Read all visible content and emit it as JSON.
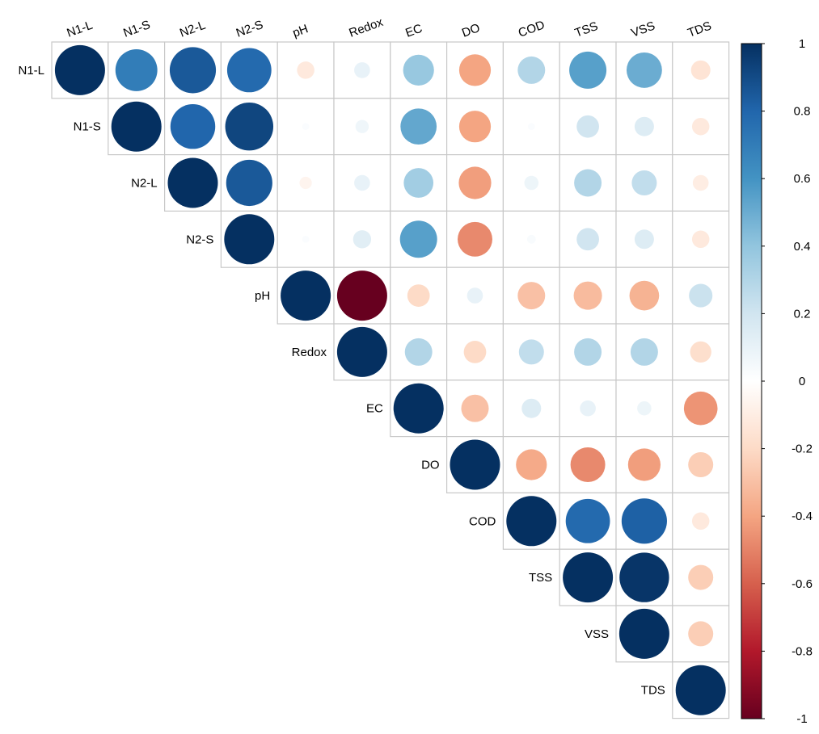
{
  "chart_data": {
    "type": "heatmap",
    "subtype": "correlation-upper-triangle-circles",
    "title": "",
    "variables": [
      "N1-L",
      "N1-S",
      "N2-L",
      "N2-S",
      "pH",
      "Redox",
      "EC",
      "DO",
      "COD",
      "TSS",
      "VSS",
      "TDS"
    ],
    "matrix": [
      [
        1.0,
        0.7,
        0.85,
        0.78,
        -0.12,
        0.1,
        0.38,
        -0.4,
        0.3,
        0.55,
        0.5,
        -0.15
      ],
      [
        0.7,
        1.0,
        0.8,
        0.92,
        0.02,
        0.07,
        0.52,
        -0.4,
        0.02,
        0.2,
        0.15,
        -0.12
      ],
      [
        0.85,
        0.8,
        1.0,
        0.85,
        -0.06,
        0.1,
        0.35,
        -0.42,
        0.08,
        0.3,
        0.25,
        -0.1
      ],
      [
        0.78,
        0.92,
        0.85,
        1.0,
        0.02,
        0.13,
        0.55,
        -0.48,
        0.03,
        0.2,
        0.15,
        -0.12
      ],
      [
        -0.12,
        0.02,
        -0.06,
        0.02,
        1.0,
        -1.0,
        -0.2,
        0.1,
        -0.3,
        -0.32,
        -0.35,
        0.22
      ],
      [
        0.1,
        0.07,
        0.1,
        0.13,
        -1.0,
        1.0,
        0.3,
        -0.2,
        0.25,
        0.3,
        0.3,
        -0.18
      ],
      [
        0.38,
        0.52,
        0.35,
        0.55,
        -0.2,
        0.3,
        1.0,
        -0.3,
        0.15,
        0.1,
        0.08,
        -0.45
      ],
      [
        -0.4,
        -0.4,
        -0.42,
        -0.48,
        0.1,
        -0.2,
        -0.3,
        1.0,
        -0.38,
        -0.48,
        -0.42,
        -0.25
      ],
      [
        0.3,
        0.02,
        0.08,
        0.03,
        -0.3,
        0.25,
        0.15,
        -0.38,
        1.0,
        0.78,
        0.82,
        -0.12
      ],
      [
        0.55,
        0.2,
        0.3,
        0.2,
        -0.32,
        0.3,
        0.1,
        -0.48,
        0.78,
        1.0,
        0.98,
        -0.25
      ],
      [
        0.5,
        0.15,
        0.25,
        0.15,
        -0.35,
        0.3,
        0.08,
        -0.42,
        0.82,
        0.98,
        1.0,
        -0.25
      ],
      [
        -0.15,
        -0.12,
        -0.1,
        -0.12,
        0.22,
        -0.18,
        -0.45,
        -0.25,
        -0.12,
        -0.25,
        -0.25,
        1.0
      ]
    ],
    "colorbar": {
      "range": [
        -1,
        1
      ],
      "ticks": [
        "1",
        "0.8",
        "0.6",
        "0.4",
        "0.2",
        "0",
        "-0.2",
        "-0.4",
        "-0.6",
        "-0.8",
        "-1"
      ],
      "palette": [
        "#67001F",
        "#B2182B",
        "#D6604D",
        "#F4A582",
        "#FDDBC7",
        "#FFFFFF",
        "#D1E5F0",
        "#92C5DE",
        "#4393C3",
        "#2166AC",
        "#053061"
      ]
    },
    "grid": true,
    "legend": "right"
  }
}
